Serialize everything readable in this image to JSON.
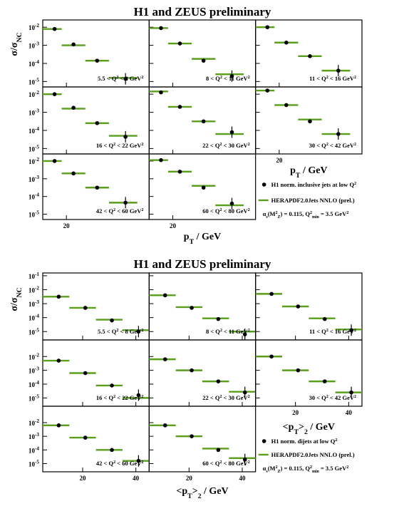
{
  "colors": {
    "theory": "#5a9e1c",
    "data": "#000000",
    "frame": "#000000"
  },
  "chart_data": [
    {
      "type": "scatter",
      "title": "H1 and ZEUS preliminary",
      "ylabel": "σ/σ_NC",
      "xlabel": "p_T / GeV",
      "xlabel_right": "p_T / GeV",
      "scale": {
        "x": "linear",
        "y": "log"
      },
      "xlim": [
        10,
        55
      ],
      "ylim_exponent": [
        -5.3,
        -1.6
      ],
      "x_ticks": [
        20
      ],
      "y_ticks_top": [
        -2,
        -3,
        -4,
        -5
      ],
      "y_ticks_inner": [
        -2,
        -3,
        -4,
        -5
      ],
      "legend": {
        "placement": "bottom-right",
        "data_label": "H1 norm. inclusive jets at low Q²",
        "theory_label": "HERAPDF2.0Jets NNLO (prel.)",
        "alpha_label": "αs(M²Z) = 0.115, Q²min = 3.5 GeV²"
      },
      "panels": [
        {
          "q2_label": "5.5 < Q² < 8 GeV²",
          "points": [
            [
              15,
              -2.1
            ],
            [
              23,
              -2.95
            ],
            [
              33,
              -3.85
            ],
            [
              45,
              -4.85
            ]
          ],
          "theory": [
            [
              10,
              18,
              -2.1
            ],
            [
              18,
              28,
              -3.0
            ],
            [
              28,
              38,
              -3.85
            ],
            [
              38,
              50,
              -4.8
            ]
          ]
        },
        {
          "q2_label": "8 < Q² < 11 GeV²",
          "points": [
            [
              15,
              -2.05
            ],
            [
              23,
              -2.9
            ],
            [
              33,
              -3.85
            ],
            [
              45,
              -4.7
            ]
          ],
          "theory": [
            [
              10,
              18,
              -2.05
            ],
            [
              18,
              28,
              -2.9
            ],
            [
              28,
              38,
              -3.75
            ],
            [
              38,
              50,
              -4.6
            ]
          ]
        },
        {
          "q2_label": "11 < Q² < 16 GeV²",
          "points": [
            [
              15,
              -2.0
            ],
            [
              23,
              -2.85
            ],
            [
              33,
              -3.6
            ],
            [
              45,
              -4.4
            ]
          ],
          "theory": [
            [
              10,
              18,
              -2.0
            ],
            [
              18,
              28,
              -2.85
            ],
            [
              28,
              38,
              -3.6
            ],
            [
              38,
              50,
              -4.4
            ]
          ]
        },
        {
          "q2_label": "16 < Q² < 22 GeV²",
          "points": [
            [
              15,
              -2.0
            ],
            [
              23,
              -2.75
            ],
            [
              33,
              -3.6
            ],
            [
              45,
              -4.35
            ]
          ],
          "theory": [
            [
              10,
              18,
              -2.0
            ],
            [
              18,
              28,
              -2.8
            ],
            [
              28,
              38,
              -3.6
            ],
            [
              38,
              50,
              -4.3
            ]
          ]
        },
        {
          "q2_label": "22 < Q² < 30 GeV²",
          "points": [
            [
              15,
              -1.9
            ],
            [
              23,
              -2.7
            ],
            [
              33,
              -3.5
            ],
            [
              45,
              -4.1
            ]
          ],
          "theory": [
            [
              10,
              18,
              -1.85
            ],
            [
              18,
              28,
              -2.7
            ],
            [
              28,
              38,
              -3.5
            ],
            [
              38,
              50,
              -4.2
            ]
          ]
        },
        {
          "q2_label": "30 < Q² < 42 GeV²",
          "points": [
            [
              15,
              -1.8
            ],
            [
              23,
              -2.6
            ],
            [
              33,
              -3.5
            ],
            [
              45,
              -4.2
            ]
          ],
          "theory": [
            [
              10,
              18,
              -1.8
            ],
            [
              18,
              28,
              -2.6
            ],
            [
              28,
              38,
              -3.4
            ],
            [
              38,
              50,
              -4.2
            ]
          ]
        },
        {
          "q2_label": "42 < Q² < 60 GeV²",
          "points": [
            [
              15,
              -2.0
            ],
            [
              23,
              -2.7
            ],
            [
              33,
              -3.5
            ],
            [
              45,
              -4.35
            ]
          ],
          "theory": [
            [
              10,
              18,
              -2.0
            ],
            [
              18,
              28,
              -2.7
            ],
            [
              28,
              38,
              -3.5
            ],
            [
              38,
              50,
              -4.35
            ]
          ]
        },
        {
          "q2_label": "60 < Q² < 80 GeV²",
          "points": [
            [
              15,
              -1.95
            ],
            [
              23,
              -2.6
            ],
            [
              33,
              -3.5
            ],
            [
              45,
              -4.4
            ]
          ],
          "theory": [
            [
              10,
              18,
              -1.95
            ],
            [
              18,
              28,
              -2.6
            ],
            [
              28,
              38,
              -3.4
            ],
            [
              38,
              50,
              -4.5
            ]
          ]
        }
      ]
    },
    {
      "type": "scatter",
      "title": "H1 and ZEUS preliminary",
      "ylabel": "σ/σ_NC",
      "xlabel": "<p_T>_2 / GeV",
      "xlabel_right": "<p_T>_2 / GeV",
      "scale": {
        "x": "linear",
        "y": "log"
      },
      "xlim": [
        5,
        45
      ],
      "ylim_exponent": [
        -5.6,
        -0.8
      ],
      "x_ticks": [
        20,
        40
      ],
      "y_ticks_top": [
        -1,
        -2,
        -3,
        -4,
        -5
      ],
      "y_ticks_inner": [
        -2,
        -3,
        -4,
        -5
      ],
      "legend": {
        "placement": "bottom-right",
        "data_label": "H1 norm. dijets at low Q²",
        "theory_label": "HERAPDF2.0Jets NNLO (prel.)",
        "alpha_label": "αs(M²Z) = 0.115, Q²min = 3.5 GeV²"
      },
      "panels": [
        {
          "q2_label": "5.5 < Q² < 8 GeV²",
          "points": [
            [
              11,
              -2.5
            ],
            [
              21,
              -3.3
            ],
            [
              31,
              -4.2
            ],
            [
              41,
              -5.0
            ]
          ],
          "theory": [
            [
              5,
              15,
              -2.5
            ],
            [
              15,
              25,
              -3.3
            ],
            [
              25,
              35,
              -4.15
            ],
            [
              35,
              45,
              -4.9
            ]
          ]
        },
        {
          "q2_label": "8 < Q² < 11 GeV²",
          "points": [
            [
              11,
              -2.4
            ],
            [
              21,
              -3.3
            ],
            [
              31,
              -4.1
            ],
            [
              41,
              -5.2
            ]
          ],
          "theory": [
            [
              5,
              15,
              -2.4
            ],
            [
              15,
              25,
              -3.25
            ],
            [
              25,
              35,
              -4.05
            ],
            [
              35,
              45,
              -5.0
            ]
          ]
        },
        {
          "q2_label": "11 < Q² < 16 GeV²",
          "points": [
            [
              11,
              -2.3
            ],
            [
              21,
              -3.2
            ],
            [
              31,
              -4.1
            ],
            [
              41,
              -4.9
            ]
          ],
          "theory": [
            [
              5,
              15,
              -2.3
            ],
            [
              15,
              25,
              -3.2
            ],
            [
              25,
              35,
              -4.05
            ],
            [
              35,
              45,
              -4.85
            ]
          ]
        },
        {
          "q2_label": "16 < Q² < 22 GeV²",
          "points": [
            [
              11,
              -2.3
            ],
            [
              21,
              -3.2
            ],
            [
              31,
              -4.1
            ],
            [
              41,
              -4.8
            ]
          ],
          "theory": [
            [
              5,
              15,
              -2.3
            ],
            [
              15,
              25,
              -3.2
            ],
            [
              25,
              35,
              -4.1
            ],
            [
              35,
              45,
              -5.0
            ]
          ]
        },
        {
          "q2_label": "22 < Q² < 30 GeV²",
          "points": [
            [
              11,
              -2.2
            ],
            [
              21,
              -3.0
            ],
            [
              31,
              -3.8
            ],
            [
              41,
              -4.6
            ]
          ],
          "theory": [
            [
              5,
              15,
              -2.2
            ],
            [
              15,
              25,
              -3.0
            ],
            [
              25,
              35,
              -3.8
            ],
            [
              35,
              45,
              -4.55
            ]
          ]
        },
        {
          "q2_label": "30 < Q² < 42 GeV²",
          "points": [
            [
              11,
              -2.0
            ],
            [
              21,
              -3.0
            ],
            [
              31,
              -3.8
            ],
            [
              41,
              -4.6
            ]
          ],
          "theory": [
            [
              5,
              15,
              -2.0
            ],
            [
              15,
              25,
              -3.0
            ],
            [
              25,
              35,
              -3.8
            ],
            [
              35,
              45,
              -4.6
            ]
          ]
        },
        {
          "q2_label": "42 < Q² < 60 GeV²",
          "points": [
            [
              11,
              -2.2
            ],
            [
              21,
              -3.1
            ],
            [
              31,
              -4.0
            ],
            [
              41,
              -4.8
            ]
          ],
          "theory": [
            [
              5,
              15,
              -2.2
            ],
            [
              15,
              25,
              -3.1
            ],
            [
              25,
              35,
              -4.0
            ],
            [
              35,
              45,
              -4.8
            ]
          ]
        },
        {
          "q2_label": "60 < Q² < 80 GeV²",
          "points": [
            [
              11,
              -2.2
            ],
            [
              21,
              -3.0
            ],
            [
              31,
              -4.0
            ],
            [
              41,
              -4.7
            ]
          ],
          "theory": [
            [
              5,
              15,
              -2.2
            ],
            [
              15,
              25,
              -3.0
            ],
            [
              25,
              35,
              -3.9
            ],
            [
              35,
              45,
              -4.6
            ]
          ]
        }
      ]
    }
  ]
}
